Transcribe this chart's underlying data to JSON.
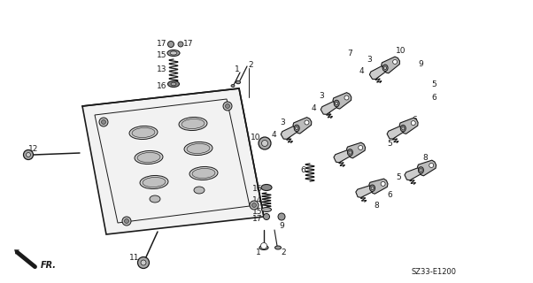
{
  "background_color": "#ffffff",
  "diagram_code": "SZ33-E1200",
  "figsize": [
    6.02,
    3.2
  ],
  "dpi": 100,
  "black": "#1a1a1a",
  "gray_fill": "#888888",
  "light_gray": "#cccccc",
  "head_fill": "#e8e8e8"
}
